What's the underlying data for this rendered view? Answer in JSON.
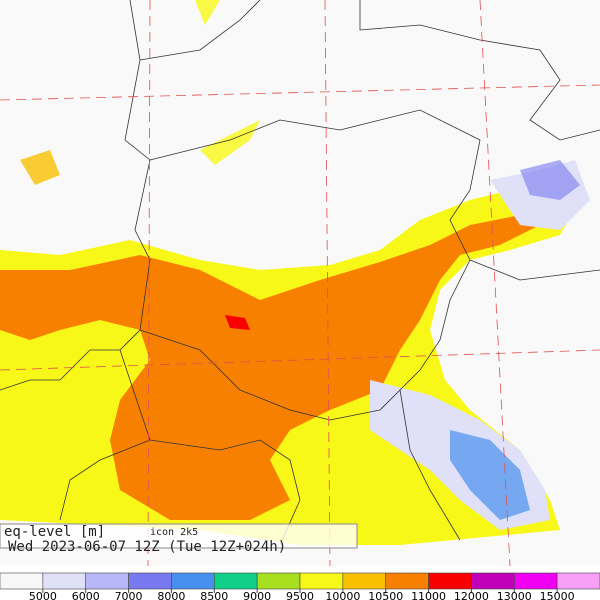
{
  "map": {
    "variable": "eq-level [m]",
    "model": "icon 2k5",
    "valid_time": "Wed 2023-06-07 12Z (Tue 12Z+024h)"
  },
  "colorbar": {
    "colors": [
      "#f8f8f8",
      "#e0e0f8",
      "#b8b8f8",
      "#7878f0",
      "#4890f0",
      "#10d088",
      "#a8e020",
      "#f8f818",
      "#f8c000",
      "#f88000",
      "#f80000",
      "#c000b8",
      "#f000f0",
      "#f8a0f8"
    ],
    "ticks": [
      5000,
      6000,
      7000,
      8000,
      8500,
      9000,
      9500,
      10000,
      10500,
      11000,
      12000,
      13000,
      15000
    ]
  }
}
